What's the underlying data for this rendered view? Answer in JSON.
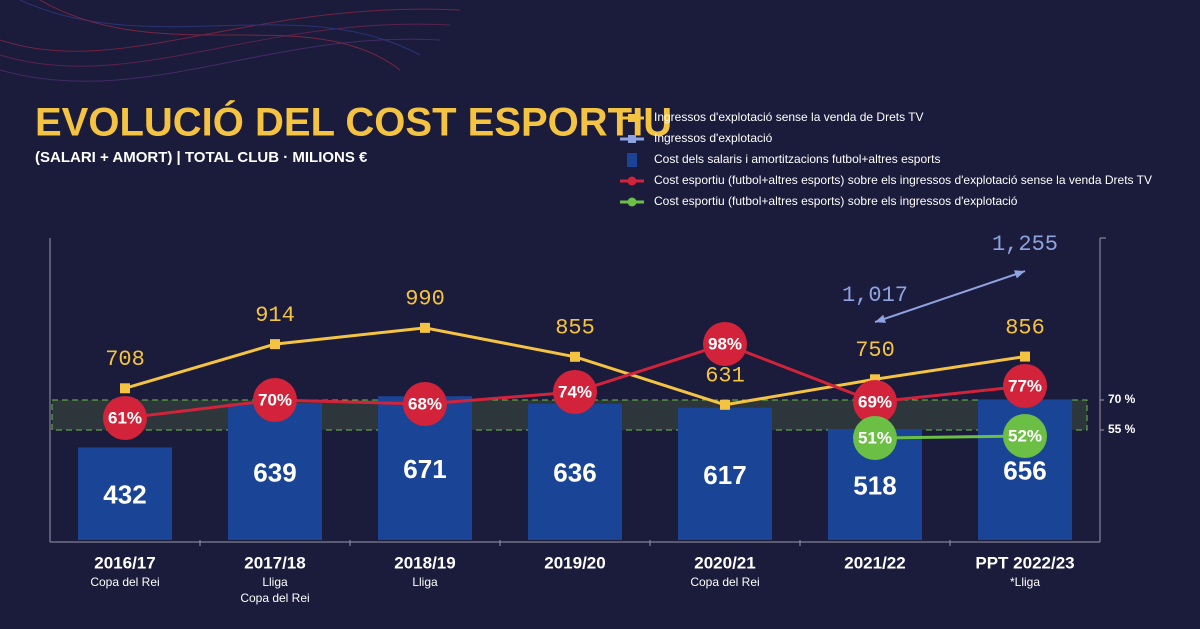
{
  "chart_data": {
    "type": "bar-line",
    "title": "EVOLUCIÓ DEL COST ESPORTIU",
    "subtitle": "(SALARI + AMORT) | TOTAL CLUB · MILIONS €",
    "categories": [
      "2016/17",
      "2017/18",
      "2018/19",
      "2019/20",
      "2020/21",
      "2021/22",
      "PPT 2022/23"
    ],
    "category_notes": [
      [
        "Copa del Rei"
      ],
      [
        "Lliga",
        "Copa del Rei"
      ],
      [
        "Lliga"
      ],
      null,
      [
        "Copa del Rei"
      ],
      null,
      [
        "*Lliga"
      ]
    ],
    "ylim": [
      0,
      1400
    ],
    "y2lim": [
      0,
      150
    ],
    "y2ticks": [
      {
        "value": 55,
        "label": "55 %"
      },
      {
        "value": 70,
        "label": "70 %"
      }
    ],
    "series": [
      {
        "name": "Ingressos d'explotació sense la venda de Drets TV",
        "type": "line",
        "color": "#f5c342",
        "values": [
          708,
          914,
          990,
          855,
          631,
          750,
          856
        ]
      },
      {
        "name": "Ingressos d'explotació",
        "type": "arrow",
        "color": "#8ea3e0",
        "values": [
          null,
          null,
          null,
          null,
          null,
          1017,
          1255
        ],
        "value_labels": [
          null,
          null,
          null,
          null,
          null,
          "1,017",
          "1,255"
        ]
      },
      {
        "name": "Cost dels salaris i amortitzacions futbol+altres esports",
        "type": "bar",
        "color": "#1a4596",
        "values": [
          432,
          639,
          671,
          636,
          617,
          518,
          656
        ]
      },
      {
        "name": "Cost esportiu (futbol+altres esports) sobre els ingressos d'explotació sense la venda Drets TV",
        "type": "line",
        "axis": "y2",
        "color": "#d2233a",
        "values": [
          61,
          70,
          68,
          74,
          98,
          69,
          77
        ],
        "value_labels": [
          "61%",
          "70%",
          "68%",
          "74%",
          "98%",
          "69%",
          "77%"
        ]
      },
      {
        "name": "Cost esportiu (futbol+altres esports) sobre els ingressos d'explotació",
        "type": "line",
        "axis": "y2",
        "color": "#6cbf45",
        "values": [
          null,
          null,
          null,
          null,
          null,
          51,
          52
        ],
        "value_labels": [
          null,
          null,
          null,
          null,
          null,
          "51%",
          "52%"
        ]
      }
    ]
  }
}
